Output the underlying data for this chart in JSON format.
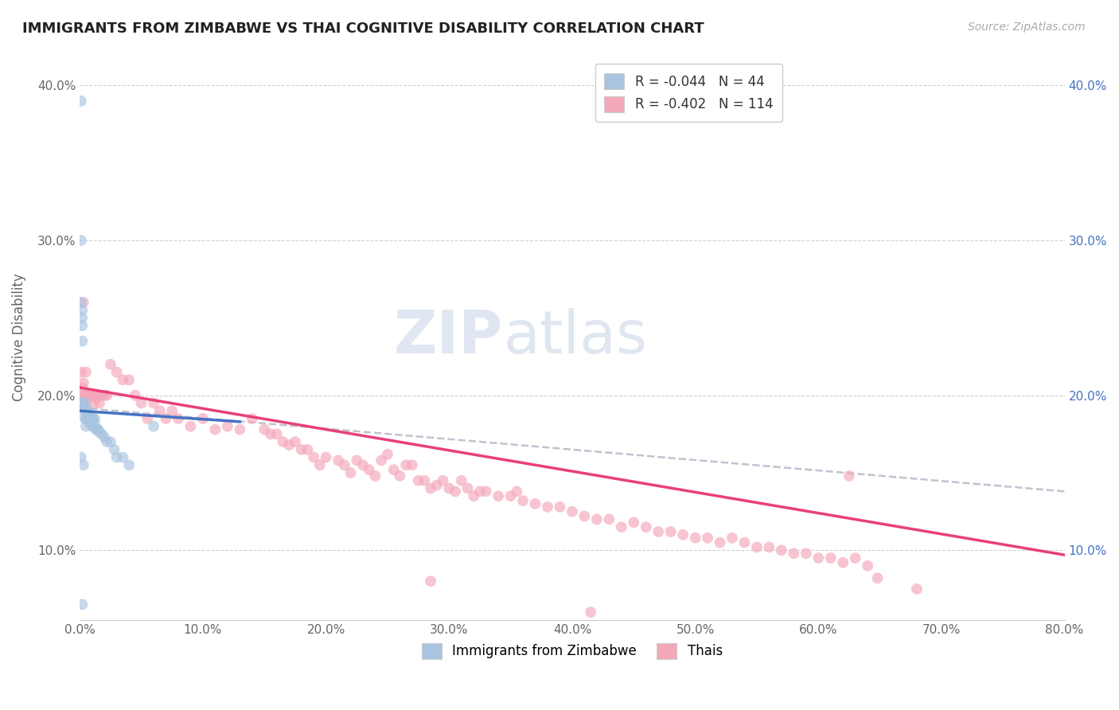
{
  "title": "IMMIGRANTS FROM ZIMBABWE VS THAI COGNITIVE DISABILITY CORRELATION CHART",
  "source": "Source: ZipAtlas.com",
  "ylabel": "Cognitive Disability",
  "xlim": [
    0.0,
    0.8
  ],
  "ylim": [
    0.055,
    0.42
  ],
  "xticks": [
    0.0,
    0.1,
    0.2,
    0.3,
    0.4,
    0.5,
    0.6,
    0.7,
    0.8
  ],
  "xticklabels": [
    "0.0%",
    "10.0%",
    "20.0%",
    "30.0%",
    "40.0%",
    "50.0%",
    "60.0%",
    "70.0%",
    "80.0%"
  ],
  "yticks": [
    0.1,
    0.2,
    0.3,
    0.4
  ],
  "yticklabels": [
    "10.0%",
    "20.0%",
    "30.0%",
    "40.0%"
  ],
  "legend_r1": "R = -0.044",
  "legend_n1": "N = 44",
  "legend_r2": "R = -0.402",
  "legend_n2": "N = 114",
  "color_zimbabwe": "#a8c4e0",
  "color_thai": "#f4a7b9",
  "color_trend_zimbabwe": "#4472c4",
  "color_trend_thai": "#e8407a",
  "color_trend_dashed": "#b8b8c8",
  "watermark_zip": "ZIP",
  "watermark_atlas": "atlas",
  "background_color": "#ffffff",
  "grid_color": "#d0d0d0",
  "zimbabwe_x": [
    0.001,
    0.001,
    0.001,
    0.002,
    0.002,
    0.002,
    0.002,
    0.002,
    0.003,
    0.003,
    0.003,
    0.004,
    0.004,
    0.005,
    0.005,
    0.005,
    0.006,
    0.006,
    0.007,
    0.007,
    0.008,
    0.008,
    0.009,
    0.01,
    0.01,
    0.011,
    0.012,
    0.012,
    0.013,
    0.014,
    0.015,
    0.016,
    0.018,
    0.02,
    0.022,
    0.025,
    0.028,
    0.03,
    0.035,
    0.04,
    0.001,
    0.003,
    0.06,
    0.002
  ],
  "zimbabwe_y": [
    0.39,
    0.3,
    0.26,
    0.255,
    0.25,
    0.245,
    0.235,
    0.195,
    0.195,
    0.195,
    0.19,
    0.195,
    0.185,
    0.19,
    0.185,
    0.18,
    0.19,
    0.185,
    0.19,
    0.185,
    0.185,
    0.182,
    0.183,
    0.185,
    0.18,
    0.185,
    0.185,
    0.182,
    0.178,
    0.178,
    0.178,
    0.176,
    0.175,
    0.173,
    0.17,
    0.17,
    0.165,
    0.16,
    0.16,
    0.155,
    0.16,
    0.155,
    0.18,
    0.065
  ],
  "thai_x": [
    0.001,
    0.001,
    0.002,
    0.002,
    0.003,
    0.003,
    0.004,
    0.005,
    0.005,
    0.006,
    0.007,
    0.008,
    0.009,
    0.01,
    0.011,
    0.012,
    0.013,
    0.015,
    0.016,
    0.018,
    0.02,
    0.022,
    0.025,
    0.03,
    0.035,
    0.04,
    0.045,
    0.05,
    0.055,
    0.06,
    0.065,
    0.07,
    0.075,
    0.08,
    0.09,
    0.1,
    0.11,
    0.12,
    0.13,
    0.14,
    0.15,
    0.155,
    0.16,
    0.165,
    0.17,
    0.175,
    0.18,
    0.185,
    0.19,
    0.195,
    0.2,
    0.21,
    0.215,
    0.22,
    0.225,
    0.23,
    0.235,
    0.24,
    0.245,
    0.25,
    0.255,
    0.26,
    0.265,
    0.27,
    0.275,
    0.28,
    0.285,
    0.29,
    0.295,
    0.3,
    0.305,
    0.31,
    0.315,
    0.32,
    0.325,
    0.33,
    0.34,
    0.35,
    0.355,
    0.36,
    0.37,
    0.38,
    0.39,
    0.4,
    0.41,
    0.42,
    0.43,
    0.44,
    0.45,
    0.46,
    0.47,
    0.48,
    0.49,
    0.5,
    0.51,
    0.52,
    0.53,
    0.54,
    0.55,
    0.56,
    0.57,
    0.58,
    0.59,
    0.6,
    0.61,
    0.62,
    0.625,
    0.63,
    0.64,
    0.648,
    0.003,
    0.285,
    0.415,
    0.68
  ],
  "thai_y": [
    0.215,
    0.2,
    0.205,
    0.195,
    0.208,
    0.192,
    0.2,
    0.215,
    0.195,
    0.2,
    0.2,
    0.2,
    0.2,
    0.2,
    0.2,
    0.195,
    0.198,
    0.2,
    0.195,
    0.2,
    0.2,
    0.2,
    0.22,
    0.215,
    0.21,
    0.21,
    0.2,
    0.195,
    0.185,
    0.195,
    0.19,
    0.185,
    0.19,
    0.185,
    0.18,
    0.185,
    0.178,
    0.18,
    0.178,
    0.185,
    0.178,
    0.175,
    0.175,
    0.17,
    0.168,
    0.17,
    0.165,
    0.165,
    0.16,
    0.155,
    0.16,
    0.158,
    0.155,
    0.15,
    0.158,
    0.155,
    0.152,
    0.148,
    0.158,
    0.162,
    0.152,
    0.148,
    0.155,
    0.155,
    0.145,
    0.145,
    0.14,
    0.142,
    0.145,
    0.14,
    0.138,
    0.145,
    0.14,
    0.135,
    0.138,
    0.138,
    0.135,
    0.135,
    0.138,
    0.132,
    0.13,
    0.128,
    0.128,
    0.125,
    0.122,
    0.12,
    0.12,
    0.115,
    0.118,
    0.115,
    0.112,
    0.112,
    0.11,
    0.108,
    0.108,
    0.105,
    0.108,
    0.105,
    0.102,
    0.102,
    0.1,
    0.098,
    0.098,
    0.095,
    0.095,
    0.092,
    0.148,
    0.095,
    0.09,
    0.082,
    0.26,
    0.08,
    0.06,
    0.075
  ],
  "zim_trend_x": [
    0.0,
    0.13
  ],
  "zim_trend_y_start": 0.19,
  "zim_trend_y_end": 0.183,
  "thai_trend_x_start": 0.0,
  "thai_trend_y_start": 0.205,
  "thai_trend_x_end": 0.8,
  "thai_trend_y_end": 0.097,
  "dashed_trend_x_start": 0.0,
  "dashed_trend_y_start": 0.192,
  "dashed_trend_x_end": 0.8,
  "dashed_trend_y_end": 0.138
}
